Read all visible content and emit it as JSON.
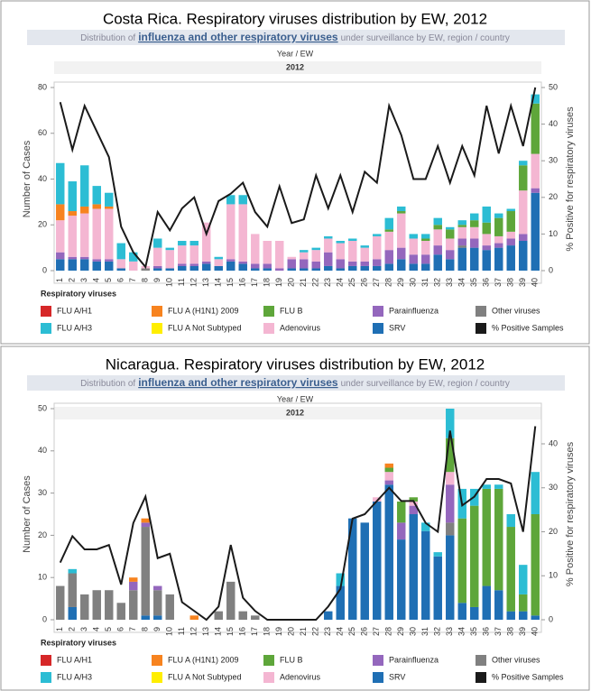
{
  "chart_data": [
    {
      "type": "bar",
      "title": "Costa Rica. Respiratory viruses distribution by EW, 2012",
      "subtitle": [
        "Distribution of",
        "influenza and other respiratory viruses",
        "under surveillance by EW, region / country"
      ],
      "header": "Year  /  EW",
      "year": "2012",
      "ylabel": "Number of Cases",
      "y2label": "% Positive for respiratory viruses",
      "legend_title": "Respiratory viruses",
      "categories": [
        1,
        2,
        3,
        4,
        5,
        6,
        7,
        8,
        9,
        10,
        11,
        12,
        13,
        14,
        15,
        16,
        17,
        18,
        19,
        20,
        21,
        22,
        23,
        24,
        25,
        26,
        27,
        28,
        29,
        30,
        31,
        32,
        33,
        34,
        35,
        36,
        37,
        38,
        39,
        40
      ],
      "ylim": [
        0,
        80
      ],
      "yticks": [
        0,
        20,
        40,
        60,
        80
      ],
      "y2lim": [
        0,
        50
      ],
      "y2ticks": [
        0,
        10,
        20,
        30,
        40,
        50
      ],
      "grid": false,
      "stacked": true,
      "series": [
        {
          "name": "FLU A/H1",
          "color": "#d62728",
          "values": [
            0,
            0,
            0,
            0,
            0,
            0,
            0,
            0,
            0,
            0,
            0,
            0,
            0,
            0,
            0,
            0,
            0,
            0,
            0,
            0,
            0,
            0,
            0,
            0,
            0,
            0,
            0,
            0,
            0,
            0,
            0,
            0,
            0,
            0,
            0,
            0,
            0,
            0,
            0,
            0
          ]
        },
        {
          "name": "FLU A (H1N1) 2009",
          "color": "#f7831f",
          "values": [
            7,
            2,
            3,
            2,
            1,
            0,
            0,
            0,
            0,
            0,
            0,
            0,
            0,
            0,
            0,
            0,
            0,
            0,
            0,
            0,
            0,
            0,
            0,
            0,
            0,
            0,
            0,
            0,
            0,
            0,
            0,
            0,
            0,
            0,
            0,
            0,
            0,
            0,
            0,
            0
          ]
        },
        {
          "name": "FLU B",
          "color": "#5ea63a",
          "values": [
            0,
            0,
            0,
            0,
            0,
            0,
            0,
            0,
            0,
            0,
            0,
            0,
            0,
            0,
            0,
            0,
            0,
            0,
            0,
            0,
            0,
            0,
            0,
            0,
            0,
            0,
            0,
            1,
            1,
            0,
            1,
            2,
            4,
            1,
            3,
            5,
            8,
            9,
            11,
            22
          ]
        },
        {
          "name": "Parainfluenza",
          "color": "#9467bd",
          "values": [
            3,
            1,
            1,
            1,
            1,
            0,
            0,
            0,
            1,
            0,
            1,
            1,
            1,
            0,
            1,
            1,
            2,
            2,
            1,
            4,
            4,
            3,
            6,
            4,
            2,
            2,
            3,
            6,
            5,
            4,
            4,
            4,
            4,
            3,
            4,
            2,
            2,
            3,
            3,
            2
          ]
        },
        {
          "name": "Other viruses",
          "color": "#808080",
          "values": [
            0,
            0,
            0,
            0,
            0,
            0,
            0,
            1,
            0,
            0,
            0,
            0,
            0,
            0,
            0,
            0,
            0,
            0,
            0,
            0,
            0,
            0,
            0,
            0,
            0,
            0,
            0,
            0,
            0,
            0,
            0,
            0,
            0,
            1,
            0,
            0,
            0,
            0,
            0,
            0
          ]
        },
        {
          "name": "FLU A/H3",
          "color": "#2cbdd4",
          "values": [
            18,
            13,
            18,
            8,
            6,
            7,
            4,
            0,
            4,
            1,
            2,
            2,
            0,
            1,
            4,
            4,
            0,
            0,
            0,
            0,
            1,
            1,
            1,
            1,
            1,
            1,
            1,
            5,
            2,
            2,
            2,
            3,
            1,
            2,
            3,
            7,
            2,
            1,
            2,
            4
          ]
        },
        {
          "name": "FLU A Not Subtyped",
          "color": "#ffee00",
          "values": [
            0,
            0,
            0,
            0,
            0,
            0,
            0,
            0,
            0,
            0,
            0,
            0,
            0,
            0,
            0,
            0,
            0,
            0,
            0,
            0,
            0,
            0,
            0,
            0,
            0,
            0,
            0,
            0,
            0,
            0,
            0,
            0,
            0,
            0,
            0,
            0,
            0,
            0,
            0,
            0
          ]
        },
        {
          "name": "Adenovirus",
          "color": "#f4b6d2",
          "values": [
            14,
            18,
            19,
            22,
            22,
            4,
            4,
            1,
            8,
            8,
            8,
            8,
            17,
            3,
            24,
            25,
            13,
            10,
            12,
            1,
            3,
            5,
            6,
            7,
            9,
            6,
            10,
            8,
            15,
            7,
            6,
            7,
            5,
            5,
            5,
            5,
            3,
            3,
            19,
            15
          ]
        },
        {
          "name": "SRV",
          "color": "#1f6fb4",
          "values": [
            5,
            5,
            5,
            4,
            4,
            1,
            0,
            0,
            1,
            1,
            2,
            2,
            3,
            2,
            4,
            3,
            1,
            1,
            0,
            1,
            1,
            1,
            2,
            1,
            2,
            2,
            2,
            3,
            5,
            3,
            3,
            7,
            5,
            10,
            10,
            9,
            10,
            11,
            13,
            34
          ]
        },
        {
          "name": "% Positive Samples",
          "color": "#1a1a1a",
          "type": "line",
          "axis": "y2",
          "values": [
            46,
            33,
            45,
            38,
            31,
            12,
            5,
            1,
            16,
            11,
            17,
            20,
            10,
            19,
            21,
            24,
            16,
            12,
            23,
            13,
            14,
            26,
            17,
            26,
            16,
            27,
            24,
            45,
            37,
            25,
            25,
            34,
            24,
            34,
            26,
            45,
            32,
            45,
            34,
            50
          ]
        }
      ]
    },
    {
      "type": "bar",
      "title": "Nicaragua. Respiratory viruses distribution by EW, 2012",
      "subtitle": [
        "Distribution of",
        "influenza and other respiratory viruses",
        "under surveillance by EW, region / country"
      ],
      "header": "Year  /  EW",
      "year": "2012",
      "ylabel": "Number of Cases",
      "y2label": "% Positive for respiratory viruses",
      "legend_title": "Respiratory viruses",
      "categories": [
        1,
        2,
        3,
        4,
        5,
        6,
        7,
        8,
        9,
        10,
        11,
        12,
        13,
        14,
        15,
        16,
        17,
        18,
        19,
        20,
        21,
        22,
        23,
        24,
        25,
        26,
        27,
        28,
        29,
        30,
        31,
        32,
        33,
        34,
        35,
        36,
        37,
        38,
        39,
        40
      ],
      "ylim": [
        0,
        50
      ],
      "yticks": [
        0,
        10,
        20,
        30,
        40,
        50
      ],
      "y2lim": [
        0,
        48
      ],
      "y2ticks": [
        0,
        10,
        20,
        30,
        40
      ],
      "grid": false,
      "stacked": true,
      "series": [
        {
          "name": "FLU A/H1",
          "color": "#d62728",
          "values": [
            0,
            0,
            0,
            0,
            0,
            0,
            0,
            0,
            0,
            0,
            0,
            0,
            0,
            0,
            0,
            0,
            0,
            0,
            0,
            0,
            0,
            0,
            0,
            0,
            0,
            0,
            0,
            0,
            0,
            0,
            0,
            0,
            0,
            0,
            0,
            0,
            0,
            0,
            0,
            0
          ]
        },
        {
          "name": "FLU A (H1N1) 2009",
          "color": "#f7831f",
          "values": [
            0,
            0,
            0,
            0,
            0,
            0,
            1,
            1,
            0,
            0,
            0,
            1,
            0,
            0,
            0,
            0,
            0,
            0,
            0,
            0,
            0,
            0,
            0,
            0,
            0,
            0,
            0,
            1,
            0,
            0,
            0,
            0,
            0,
            0,
            0,
            0,
            0,
            0,
            0,
            0
          ]
        },
        {
          "name": "FLU B",
          "color": "#5ea63a",
          "values": [
            0,
            0,
            0,
            0,
            0,
            0,
            0,
            0,
            0,
            0,
            0,
            0,
            0,
            0,
            0,
            0,
            0,
            0,
            0,
            0,
            0,
            0,
            0,
            0,
            0,
            0,
            0,
            1,
            5,
            1,
            0,
            0,
            8,
            20,
            24,
            23,
            24,
            20,
            4,
            24
          ]
        },
        {
          "name": "Parainfluenza",
          "color": "#9467bd",
          "values": [
            0,
            0,
            0,
            0,
            0,
            0,
            2,
            1,
            1,
            0,
            0,
            0,
            0,
            0,
            0,
            0,
            0,
            0,
            0,
            0,
            0,
            0,
            0,
            0,
            0,
            0,
            0,
            1,
            4,
            2,
            0,
            0,
            9,
            0,
            0,
            0,
            0,
            0,
            0,
            0
          ]
        },
        {
          "name": "Other viruses",
          "color": "#808080",
          "values": [
            8,
            8,
            6,
            7,
            7,
            4,
            7,
            21,
            6,
            6,
            0,
            0,
            0,
            2,
            9,
            2,
            1,
            0,
            0,
            0,
            0,
            0,
            0,
            0,
            0,
            0,
            0,
            0,
            0,
            0,
            0,
            0,
            3,
            0,
            0,
            0,
            0,
            0,
            0,
            0
          ]
        },
        {
          "name": "FLU A/H3",
          "color": "#2cbdd4",
          "values": [
            0,
            1,
            0,
            0,
            0,
            0,
            0,
            0,
            0,
            0,
            0,
            0,
            0,
            0,
            0,
            0,
            0,
            0,
            0,
            0,
            0,
            0,
            0,
            3,
            0,
            0,
            0,
            0,
            0,
            0,
            2,
            1,
            7,
            7,
            4,
            1,
            1,
            3,
            7,
            10
          ]
        },
        {
          "name": "FLU A Not Subtyped",
          "color": "#ffee00",
          "values": [
            0,
            0,
            0,
            0,
            0,
            0,
            0,
            0,
            0,
            0,
            0,
            0,
            0,
            0,
            0,
            0,
            0,
            0,
            0,
            0,
            0,
            0,
            0,
            0,
            0,
            0,
            0,
            0,
            0,
            0,
            0,
            0,
            0,
            0,
            0,
            0,
            0,
            0,
            0,
            0
          ]
        },
        {
          "name": "Adenovirus",
          "color": "#f4b6d2",
          "values": [
            0,
            0,
            0,
            0,
            0,
            0,
            0,
            0,
            0,
            0,
            0,
            0,
            0,
            0,
            0,
            0,
            0,
            0,
            0,
            0,
            0,
            0,
            0,
            0,
            0,
            0,
            1,
            2,
            0,
            1,
            0,
            0,
            3,
            0,
            0,
            0,
            0,
            0,
            0,
            0
          ]
        },
        {
          "name": "SRV",
          "color": "#1f6fb4",
          "values": [
            0,
            3,
            0,
            0,
            0,
            0,
            0,
            1,
            1,
            0,
            0,
            0,
            0,
            0,
            0,
            0,
            0,
            0,
            0,
            0,
            0,
            0,
            2,
            8,
            24,
            23,
            28,
            32,
            19,
            25,
            21,
            15,
            20,
            4,
            3,
            8,
            7,
            2,
            2,
            1
          ]
        },
        {
          "name": "% Positive Samples",
          "color": "#1a1a1a",
          "type": "line",
          "axis": "y2",
          "values": [
            13,
            19,
            16,
            16,
            17,
            8,
            22,
            28,
            14,
            15,
            4,
            2,
            0,
            3,
            17,
            5,
            2,
            0,
            0,
            0,
            0,
            0,
            3,
            7,
            23,
            24,
            27,
            30,
            27,
            27,
            22,
            20,
            43,
            26,
            28,
            32,
            32,
            31,
            20,
            44
          ]
        }
      ]
    }
  ]
}
